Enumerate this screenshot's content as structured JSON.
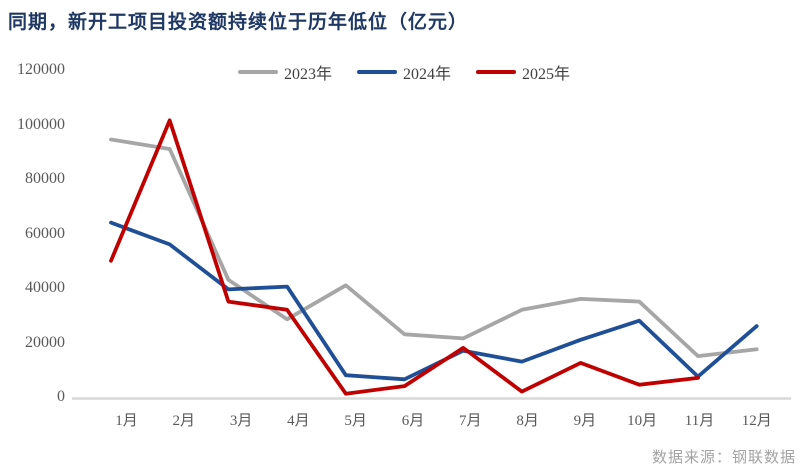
{
  "title": "同期，新开工项目投资额持续位于历年低位（亿元）",
  "source": "数据来源：钢联数据",
  "colors": {
    "title_text": "#1f3864",
    "axis_label": "#595959",
    "axis_line": "#d9d9d9",
    "legend_text": "#404040",
    "source_text": "#a3a3a3",
    "series_2023": "#a6a6a6",
    "series_2024": "#1f4f96",
    "series_2025": "#c00000"
  },
  "chart_data": {
    "type": "line",
    "title": "同期，新开工项目投资额持续位于历年低位（亿元）",
    "xlabel": "",
    "ylabel": "",
    "ylim": [
      0,
      120000
    ],
    "ytick_step": 20000,
    "yticks": [
      120000,
      100000,
      80000,
      60000,
      40000,
      20000,
      0
    ],
    "grid": false,
    "legend_position": "top",
    "categories": [
      "1月",
      "2月",
      "3月",
      "4月",
      "5月",
      "6月",
      "7月",
      "8月",
      "9月",
      "10月",
      "11月",
      "12月"
    ],
    "series": [
      {
        "name": "2023年",
        "color": "#a6a6a6",
        "values": [
          94500,
          91000,
          43000,
          28500,
          41000,
          23000,
          21500,
          32000,
          36000,
          35000,
          15000,
          17500
        ]
      },
      {
        "name": "2024年",
        "color": "#1f4f96",
        "values": [
          64000,
          56000,
          39500,
          40500,
          8000,
          6500,
          17000,
          13000,
          21000,
          28000,
          7500,
          26000
        ]
      },
      {
        "name": "2025年",
        "color": "#c00000",
        "values": [
          50000,
          101500,
          35000,
          32000,
          1200,
          4000,
          18000,
          2000,
          12500,
          4500,
          7000,
          null
        ]
      }
    ]
  }
}
